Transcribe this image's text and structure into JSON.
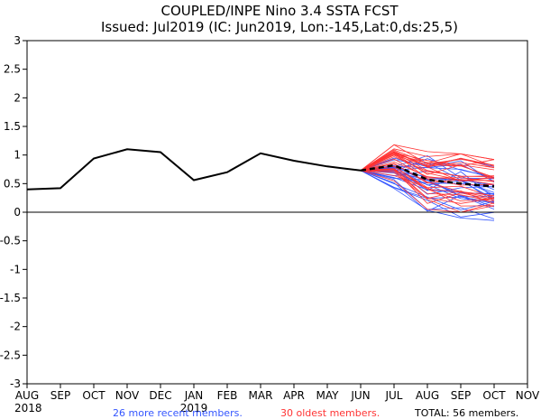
{
  "chart_data": {
    "type": "line",
    "title": "COUPLED/INPE Nino 3.4 SSTA FCST",
    "subtitle": "Issued: Jul2019 (IC: Jun2019, Lon:-145,Lat:0,ds:25,5)",
    "x_ticks": [
      "AUG",
      "SEP",
      "OCT",
      "NOV",
      "DEC",
      "JAN",
      "FEB",
      "MAR",
      "APR",
      "MAY",
      "JUN",
      "JUL",
      "AUG",
      "SEP",
      "OCT",
      "NOV"
    ],
    "year_labels": [
      "2018",
      "2019"
    ],
    "y_ticks": [
      "3",
      "2.5",
      "2",
      "1.5",
      "1",
      "0.5",
      "0",
      "-0.5",
      "-1",
      "-1.5",
      "-2",
      "-2.5",
      "-3"
    ],
    "ylim": [
      -3,
      3
    ],
    "observed": {
      "name": "observed",
      "color": "#000000",
      "values": [
        0.4,
        0.42,
        0.94,
        1.1,
        1.05,
        0.56,
        0.7,
        1.03,
        0.9,
        0.8,
        0.73
      ]
    },
    "ensemble_mean": {
      "name": "ensemble mean",
      "color": "#000000",
      "values": [
        0.73,
        0.82,
        0.57,
        0.5,
        0.45
      ]
    },
    "recent_members": {
      "count_label": "26 more recent members.",
      "color": "#3355ff",
      "count": 26,
      "start": 0.73,
      "jul_range": [
        0.35,
        1.0
      ],
      "aug_range": [
        -0.25,
        1.22
      ],
      "sep_range": [
        -0.18,
        1.05
      ],
      "oct_range": [
        -0.18,
        0.82
      ]
    },
    "oldest_members": {
      "count_label": "30 oldest members.",
      "color": "#ff3333",
      "count": 30,
      "start": 0.73,
      "jul_range": [
        0.55,
        1.18
      ],
      "aug_range": [
        0.05,
        1.08
      ],
      "sep_range": [
        0.0,
        1.02
      ],
      "oct_range": [
        -0.02,
        0.92
      ]
    },
    "total_label": "TOTAL: 56 members."
  }
}
